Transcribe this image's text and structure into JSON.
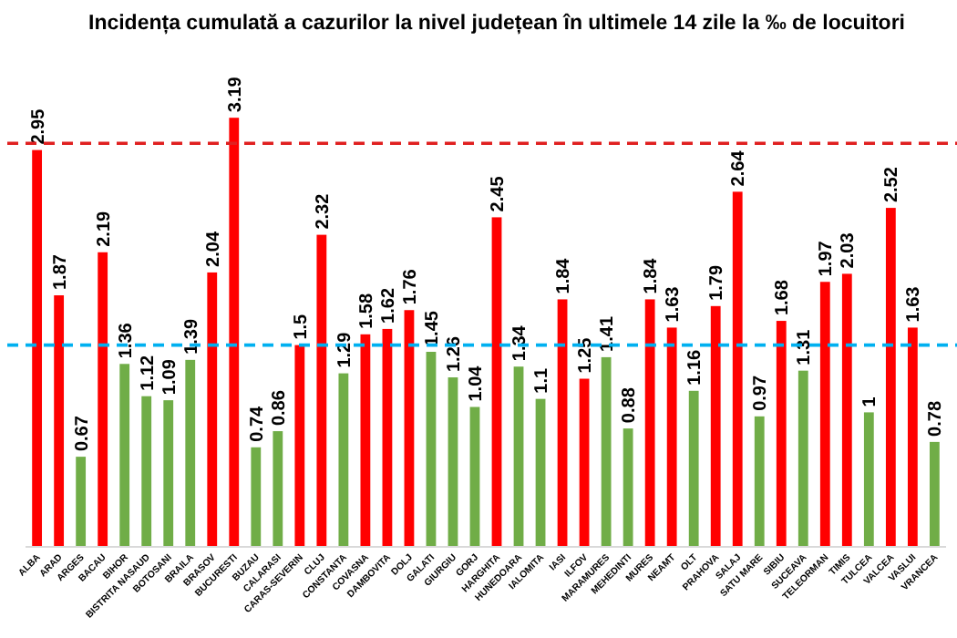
{
  "chart_data": {
    "type": "bar",
    "title": "Incidența cumulată a cazurilor la nivel județean în ultimele 14 zile la ‰ de locuitori",
    "categories": [
      "ALBA",
      "ARAD",
      "ARGES",
      "BACAU",
      "BIHOR",
      "BISTRITA NASAUD",
      "BOTOSANI",
      "BRAILA",
      "BRASOV",
      "BUCURESTI",
      "BUZAU",
      "CALARASI",
      "CARAS-SEVERIN",
      "CLUJ",
      "CONSTANTA",
      "COVASNA",
      "DAMBOVITA",
      "DOLJ",
      "GALATI",
      "GIURGIU",
      "GORJ",
      "HARGHITA",
      "HUNEDOARA",
      "IALOMITA",
      "IASI",
      "ILFOV",
      "MARAMURES",
      "MEHEDINTI",
      "MURES",
      "NEAMT",
      "OLT",
      "PRAHOVA",
      "SALAJ",
      "SATU MARE",
      "SIBIU",
      "SUCEAVA",
      "TELEORMAN",
      "TIMIS",
      "TULCEA",
      "VALCEA",
      "VASLUI",
      "VRANCEA"
    ],
    "values": [
      2.95,
      1.87,
      0.67,
      2.19,
      1.36,
      1.12,
      1.09,
      1.39,
      2.04,
      3.19,
      0.74,
      0.86,
      1.5,
      2.32,
      1.29,
      1.58,
      1.62,
      1.76,
      1.45,
      1.26,
      1.04,
      2.45,
      1.34,
      1.1,
      1.84,
      1.25,
      1.41,
      0.88,
      1.84,
      1.63,
      1.16,
      1.79,
      2.64,
      0.97,
      1.68,
      1.31,
      1.97,
      2.03,
      1,
      2.52,
      1.63,
      0.78
    ],
    "colors": [
      "#ff0000",
      "#ff0000",
      "#70ad47",
      "#ff0000",
      "#70ad47",
      "#70ad47",
      "#70ad47",
      "#70ad47",
      "#ff0000",
      "#ff0000",
      "#70ad47",
      "#70ad47",
      "#ff0000",
      "#ff0000",
      "#70ad47",
      "#ff0000",
      "#ff0000",
      "#ff0000",
      "#70ad47",
      "#70ad47",
      "#70ad47",
      "#ff0000",
      "#70ad47",
      "#70ad47",
      "#ff0000",
      "#ff0000",
      "#70ad47",
      "#70ad47",
      "#ff0000",
      "#ff0000",
      "#70ad47",
      "#ff0000",
      "#ff0000",
      "#70ad47",
      "#ff0000",
      "#70ad47",
      "#ff0000",
      "#ff0000",
      "#70ad47",
      "#ff0000",
      "#ff0000",
      "#70ad47"
    ],
    "tick_labels": "x",
    "data_labels": true,
    "ref_lines": [
      {
        "axis": "y",
        "value": 3,
        "color": "#e02020",
        "line_style": "dashed"
      },
      {
        "axis": "y",
        "value": 1.5,
        "color": "#00b0f0",
        "line_style": "dashed"
      }
    ]
  }
}
